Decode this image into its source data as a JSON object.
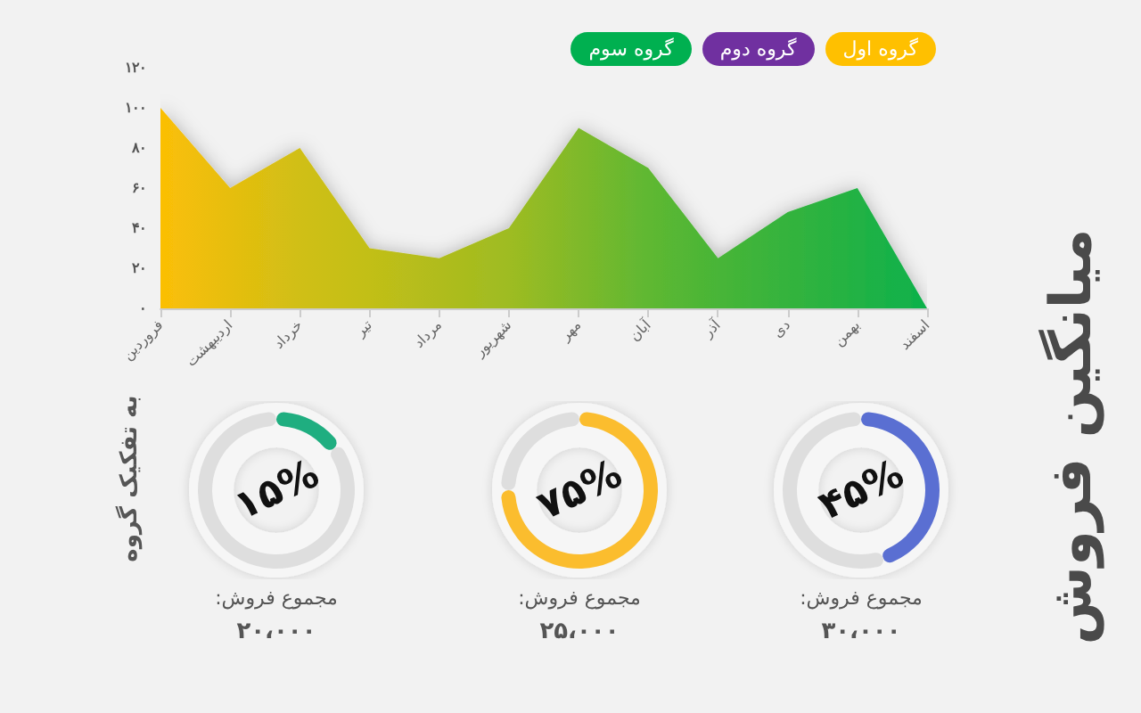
{
  "chart_data": [
    {
      "type": "area",
      "categories": [
        "فروردین",
        "اردیبهشت",
        "خرداد",
        "تیر",
        "مرداد",
        "شهریور",
        "مهر",
        "آبان",
        "آذر",
        "دی",
        "بهمن",
        "اسفند"
      ],
      "values": [
        100,
        60,
        80,
        30,
        25,
        40,
        90,
        70,
        25,
        48,
        60,
        0
      ],
      "colors": [
        "#fbbf05",
        "#e6be0f",
        "#d0bf14",
        "#c2bf18",
        "#b0bc1c",
        "#9ebc22",
        "#7fb92a",
        "#5fb832",
        "#48b537",
        "#34b33d",
        "#22b244",
        "#0db14b"
      ],
      "ylim": [
        0,
        120
      ],
      "yticks": [
        {
          "value": 0,
          "label": "۰"
        },
        {
          "value": 20,
          "label": "۲۰"
        },
        {
          "value": 40,
          "label": "۴۰"
        },
        {
          "value": 60,
          "label": "۶۰"
        },
        {
          "value": 80,
          "label": "۸۰"
        },
        {
          "value": 100,
          "label": "۱۰۰"
        },
        {
          "value": 120,
          "label": "۱۲۰"
        }
      ],
      "grid": false,
      "marker": "none"
    },
    {
      "type": "other",
      "title": "میانگین فروش",
      "subtitle": "به تفکیک گروه",
      "categories": [
        "گروه اول",
        "گروه دوم",
        "گروه سوم"
      ],
      "colors": [
        "#ffc000",
        "#7030a0",
        "#00b050"
      ]
    },
    {
      "type": "donut",
      "categories": [
        null,
        null
      ],
      "title": "۱۵%",
      "values": [
        15,
        85
      ],
      "colors": [
        "#1fae80",
        "#dedede"
      ],
      "annotations": [
        "مجموع فروش:",
        "۲۰،۰۰۰"
      ]
    },
    {
      "type": "donut",
      "categories": [
        null,
        null
      ],
      "title": "۷۵%",
      "values": [
        75,
        25
      ],
      "colors": [
        "#fbbd2e",
        "#dedede"
      ],
      "annotations": [
        "مجموع فروش:",
        "۲۵،۰۰۰"
      ]
    },
    {
      "type": "donut",
      "categories": [
        null,
        null
      ],
      "title": "۴۵%",
      "values": [
        45,
        55
      ],
      "colors": [
        "#5a6fd2",
        "#dedede"
      ],
      "annotations": [
        "مجموع فروش:",
        "۳۰،۰۰۰"
      ]
    }
  ]
}
